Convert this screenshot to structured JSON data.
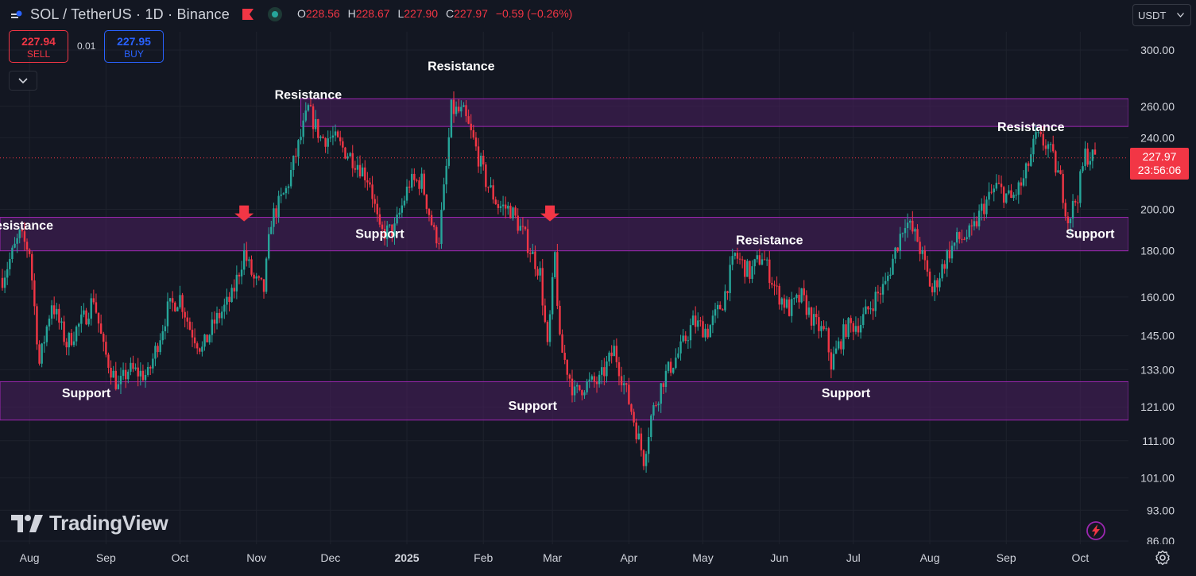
{
  "header": {
    "symbol": "SOL / TetherUS · 1D · Binance",
    "ohlc": {
      "o_label": "O",
      "o": "228.56",
      "h_label": "H",
      "h": "228.67",
      "l_label": "L",
      "l": "227.90",
      "c_label": "C",
      "c": "227.97",
      "change": "−0.59 (−0.26%)"
    }
  },
  "trade": {
    "sell_price": "227.94",
    "sell_label": "SELL",
    "spread": "0.01",
    "buy_price": "227.95",
    "buy_label": "BUY"
  },
  "currency": "USDT",
  "last_price": {
    "price": "227.97",
    "countdown": "23:56:06"
  },
  "logo": "TradingView",
  "colors": {
    "up": "#26a69a",
    "down": "#f23645",
    "wick_up": "#26a69a",
    "zone_fill": "#4a1f5e",
    "zone_border": "#9c27b0",
    "background": "#131722",
    "label": "#ffffff",
    "arrow": "#f23645"
  },
  "icons": [
    "chart-menu-icon",
    "flag-icon",
    "market-status-icon",
    "chevron-down-icon",
    "gear-icon",
    "bolt-icon",
    "tradingview-logo-icon",
    "arrow-down-icon"
  ],
  "chart_data": {
    "type": "candlestick",
    "y_scale": "log",
    "y_ticks": [
      86,
      93,
      101,
      111,
      121,
      133,
      145,
      160,
      180,
      200,
      240,
      260,
      300
    ],
    "y_tick_labels": [
      "86.00",
      "93.00",
      "101.00",
      "111.00",
      "121.00",
      "133.00",
      "145.00",
      "160.00",
      "180.00",
      "200.00",
      "240.00",
      "260.00",
      "300.00"
    ],
    "ylim": [
      86,
      320
    ],
    "x_ticks": [
      "Aug",
      "Sep",
      "Oct",
      "Nov",
      "Dec",
      "2025",
      "Feb",
      "Mar",
      "Apr",
      "May",
      "Jun",
      "Jul",
      "Aug",
      "Sep",
      "Oct"
    ],
    "x_dates": [
      "2024-07-21",
      "2025-10-07"
    ],
    "zones": [
      {
        "low": 247,
        "high": 265
      },
      {
        "low": 180,
        "high": 196
      },
      {
        "low": 117,
        "high": 129
      }
    ],
    "annotations": [
      {
        "text": "Resistance",
        "date": "2024-07-28",
        "price": 190
      },
      {
        "text": "Support",
        "date": "2024-08-24",
        "price": 124
      },
      {
        "text": "Resistance",
        "date": "2024-11-22",
        "price": 265
      },
      {
        "text": "Support",
        "date": "2024-12-21",
        "price": 186
      },
      {
        "text": "Resistance",
        "date": "2025-01-23",
        "price": 285
      },
      {
        "text": "Support",
        "date": "2025-02-21",
        "price": 120
      },
      {
        "text": "Resistance",
        "date": "2025-05-28",
        "price": 183
      },
      {
        "text": "Support",
        "date": "2025-06-28",
        "price": 124
      },
      {
        "text": "Resistance",
        "date": "2025-09-11",
        "price": 244
      },
      {
        "text": "Support",
        "date": "2025-10-05",
        "price": 186
      }
    ],
    "arrows": [
      {
        "date": "2024-10-27",
        "price": 194
      },
      {
        "date": "2025-02-28",
        "price": 194
      }
    ],
    "price_path": [
      [
        "2024-07-21",
        168
      ],
      [
        "2024-07-28",
        187
      ],
      [
        "2024-08-01",
        180
      ],
      [
        "2024-08-05",
        135
      ],
      [
        "2024-08-10",
        158
      ],
      [
        "2024-08-16",
        142
      ],
      [
        "2024-08-24",
        153
      ],
      [
        "2024-08-27",
        160
      ],
      [
        "2024-08-31",
        140
      ],
      [
        "2024-09-06",
        127
      ],
      [
        "2024-09-10",
        133
      ],
      [
        "2024-09-18",
        131
      ],
      [
        "2024-09-26",
        155
      ],
      [
        "2024-10-01",
        160
      ],
      [
        "2024-10-05",
        148
      ],
      [
        "2024-10-10",
        140
      ],
      [
        "2024-10-15",
        150
      ],
      [
        "2024-10-22",
        160
      ],
      [
        "2024-10-27",
        179
      ],
      [
        "2024-10-31",
        167
      ],
      [
        "2024-11-04",
        163
      ],
      [
        "2024-11-07",
        195
      ],
      [
        "2024-11-13",
        210
      ],
      [
        "2024-11-18",
        235
      ],
      [
        "2024-11-22",
        258
      ],
      [
        "2024-11-27",
        240
      ],
      [
        "2024-12-02",
        240
      ],
      [
        "2024-12-07",
        232
      ],
      [
        "2024-12-12",
        225
      ],
      [
        "2024-12-17",
        215
      ],
      [
        "2024-12-21",
        188
      ],
      [
        "2024-12-27",
        190
      ],
      [
        "2025-01-02",
        214
      ],
      [
        "2025-01-07",
        215
      ],
      [
        "2025-01-12",
        188
      ],
      [
        "2025-01-14",
        186
      ],
      [
        "2025-01-17",
        222
      ],
      [
        "2025-01-19",
        258
      ],
      [
        "2025-01-24",
        255
      ],
      [
        "2025-01-28",
        238
      ],
      [
        "2025-02-02",
        215
      ],
      [
        "2025-02-07",
        202
      ],
      [
        "2025-02-12",
        200
      ],
      [
        "2025-02-18",
        186
      ],
      [
        "2025-02-24",
        170
      ],
      [
        "2025-02-27",
        140
      ],
      [
        "2025-03-02",
        178
      ],
      [
        "2025-03-04",
        142
      ],
      [
        "2025-03-10",
        125
      ],
      [
        "2025-03-14",
        128
      ],
      [
        "2025-03-20",
        129
      ],
      [
        "2025-03-26",
        140
      ],
      [
        "2025-04-02",
        120
      ],
      [
        "2025-04-07",
        106
      ],
      [
        "2025-04-10",
        118
      ],
      [
        "2025-04-15",
        130
      ],
      [
        "2025-04-22",
        140
      ],
      [
        "2025-04-27",
        150
      ],
      [
        "2025-05-03",
        147
      ],
      [
        "2025-05-09",
        158
      ],
      [
        "2025-05-14",
        178
      ],
      [
        "2025-05-20",
        170
      ],
      [
        "2025-05-25",
        178
      ],
      [
        "2025-05-31",
        162
      ],
      [
        "2025-06-05",
        155
      ],
      [
        "2025-06-10",
        160
      ],
      [
        "2025-06-15",
        150
      ],
      [
        "2025-06-20",
        145
      ],
      [
        "2025-06-22",
        135
      ],
      [
        "2025-06-28",
        148
      ],
      [
        "2025-07-04",
        150
      ],
      [
        "2025-07-10",
        160
      ],
      [
        "2025-07-14",
        165
      ],
      [
        "2025-07-18",
        180
      ],
      [
        "2025-07-22",
        195
      ],
      [
        "2025-07-27",
        185
      ],
      [
        "2025-08-02",
        162
      ],
      [
        "2025-08-08",
        178
      ],
      [
        "2025-08-12",
        185
      ],
      [
        "2025-08-18",
        188
      ],
      [
        "2025-08-22",
        200
      ],
      [
        "2025-08-28",
        212
      ],
      [
        "2025-09-03",
        205
      ],
      [
        "2025-09-08",
        215
      ],
      [
        "2025-09-13",
        240
      ],
      [
        "2025-09-18",
        235
      ],
      [
        "2025-09-23",
        215
      ],
      [
        "2025-09-26",
        195
      ],
      [
        "2025-09-30",
        208
      ],
      [
        "2025-10-03",
        230
      ],
      [
        "2025-10-07",
        228
      ]
    ]
  }
}
